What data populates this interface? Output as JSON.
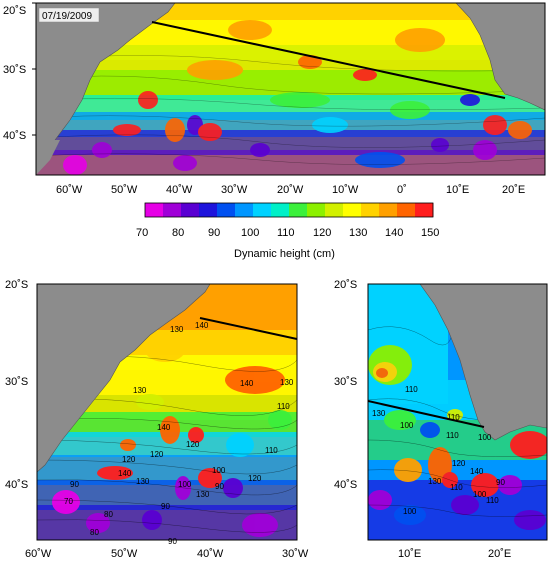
{
  "date_label": "07/19/2009",
  "colorbar": {
    "label": "Dynamic height (cm)",
    "ticks": [
      "70",
      "80",
      "90",
      "100",
      "110",
      "120",
      "130",
      "140",
      "150"
    ],
    "colors": [
      "#e600e6",
      "#a000d8",
      "#5a00d2",
      "#1e14dc",
      "#0050f0",
      "#0096ff",
      "#00d2ff",
      "#00f0c8",
      "#3cf03c",
      "#8cf000",
      "#d2f000",
      "#ffff00",
      "#ffd200",
      "#ffa000",
      "#ff6400",
      "#ff1e1e"
    ]
  },
  "map_top": {
    "lat_ticks": [
      "20˚S",
      "30˚S",
      "40˚S"
    ],
    "lon_ticks": [
      "60˚W",
      "50˚W",
      "40˚W",
      "30˚W",
      "20˚W",
      "10˚W",
      "0˚",
      "10˚E",
      "20˚E"
    ]
  },
  "map_bottom_left": {
    "lat_ticks": [
      "20˚S",
      "30˚S",
      "40˚S"
    ],
    "lon_ticks": [
      "60˚W",
      "50˚W",
      "40˚W",
      "30˚W"
    ],
    "contour_labels": [
      "130",
      "140",
      "140",
      "130",
      "130",
      "140",
      "120",
      "120",
      "110",
      "140",
      "130",
      "130",
      "100",
      "120",
      "120",
      "100",
      "90",
      "90",
      "110",
      "90",
      "70",
      "80",
      "80",
      "90"
    ]
  },
  "map_bottom_right": {
    "lat_ticks": [
      "20˚S",
      "30˚S",
      "40˚S"
    ],
    "lon_ticks": [
      "10˚E",
      "20˚E"
    ],
    "contour_labels": [
      "110",
      "130",
      "100",
      "110",
      "110",
      "100",
      "120",
      "130",
      "110",
      "140",
      "100",
      "110",
      "90",
      "100"
    ]
  },
  "colors": {
    "land": "#8c8c8c",
    "land_stroke": "#555555",
    "section_line": "#000000"
  }
}
